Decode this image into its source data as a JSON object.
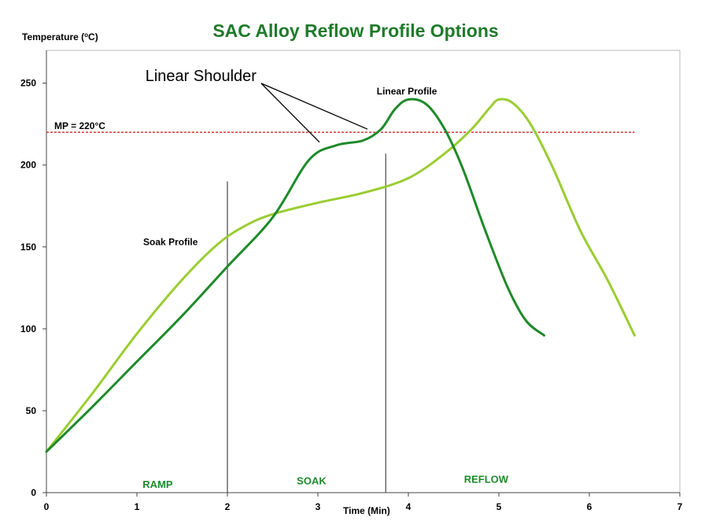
{
  "chart_data": {
    "type": "line",
    "title": "SAC Alloy Reflow Profile Options",
    "ylabel": "Temperature (°C)",
    "xlabel": "Time (Min)",
    "xlim": [
      0,
      7
    ],
    "ylim": [
      0,
      270
    ],
    "x_ticks": [
      "0",
      "1",
      "2",
      "3",
      "4",
      "5",
      "6",
      "7"
    ],
    "y_ticks": [
      "0",
      "50",
      "100",
      "150",
      "200",
      "250"
    ],
    "grid": false,
    "series": [
      {
        "name": "Linear Profile",
        "color": "#1e8a2a",
        "points": [
          [
            0,
            25
          ],
          [
            0.5,
            52
          ],
          [
            1,
            80
          ],
          [
            1.5,
            108
          ],
          [
            2,
            138
          ],
          [
            2.5,
            168
          ],
          [
            2.9,
            203
          ],
          [
            3.2,
            212
          ],
          [
            3.5,
            215
          ],
          [
            3.7,
            222
          ],
          [
            3.85,
            234
          ],
          [
            4,
            240
          ],
          [
            4.2,
            237
          ],
          [
            4.4,
            222
          ],
          [
            4.6,
            198
          ],
          [
            4.85,
            160
          ],
          [
            5.1,
            125
          ],
          [
            5.3,
            105
          ],
          [
            5.5,
            96
          ]
        ]
      },
      {
        "name": "Soak Profile",
        "color": "#9acd32",
        "points": [
          [
            0,
            25
          ],
          [
            0.5,
            60
          ],
          [
            1,
            97
          ],
          [
            1.5,
            130
          ],
          [
            1.9,
            152
          ],
          [
            2.2,
            163
          ],
          [
            2.5,
            170
          ],
          [
            3,
            177
          ],
          [
            3.5,
            183
          ],
          [
            4,
            192
          ],
          [
            4.4,
            207
          ],
          [
            4.7,
            222
          ],
          [
            4.9,
            235
          ],
          [
            5,
            240
          ],
          [
            5.15,
            238
          ],
          [
            5.35,
            225
          ],
          [
            5.6,
            198
          ],
          [
            5.9,
            160
          ],
          [
            6.2,
            130
          ],
          [
            6.5,
            96
          ]
        ]
      }
    ],
    "reference_line": {
      "label": "MP = 220°C",
      "y": 220,
      "color": "#d42020"
    },
    "phase_dividers": [
      2,
      3.75
    ],
    "phases": [
      {
        "label": "RAMP",
        "x": 1.23,
        "y": 3
      },
      {
        "label": "SOAK",
        "x": 2.93,
        "y": 5
      },
      {
        "label": "REFLOW",
        "x": 4.86,
        "y": 6
      }
    ],
    "annotation": {
      "label": "Linear Shoulder",
      "targets": [
        [
          3,
          212
        ],
        [
          3.53,
          220
        ]
      ]
    },
    "series_labels": [
      {
        "series": 0,
        "text": "Linear Profile",
        "x": 3.65,
        "y": 243
      },
      {
        "series": 1,
        "text": "Soak Profile",
        "x": 1.07,
        "y": 151
      }
    ],
    "title_color": "#1e7a2a",
    "phase_color": "#1e8a2a"
  }
}
